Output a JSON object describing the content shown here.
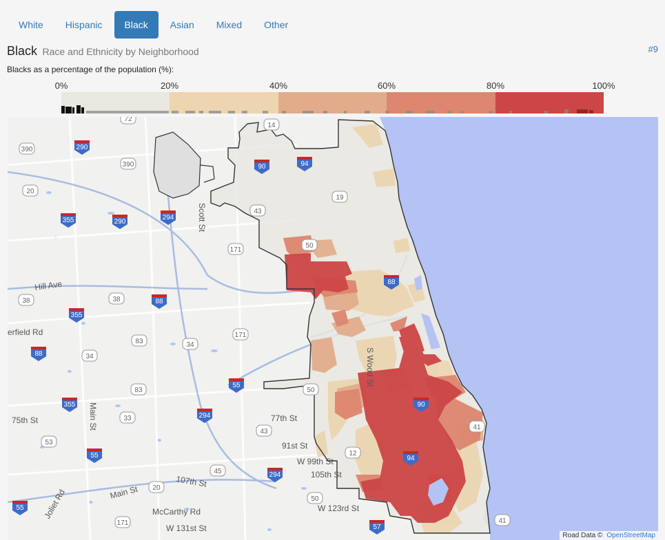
{
  "tabs": [
    {
      "label": "White",
      "active": false
    },
    {
      "label": "Hispanic",
      "active": false
    },
    {
      "label": "Black",
      "active": true
    },
    {
      "label": "Asian",
      "active": false
    },
    {
      "label": "Mixed",
      "active": false
    },
    {
      "label": "Other",
      "active": false
    }
  ],
  "header": {
    "title": "Black",
    "subtitle": "Race and Ethnicity by Neighborhood",
    "permalink": "#9"
  },
  "legend": {
    "caption": "Blacks as a percentage of the population (%):",
    "ticks": [
      "0%",
      "20%",
      "40%",
      "60%",
      "80%",
      "100%"
    ],
    "colors": [
      "#e9e8e0",
      "#ecd5b0",
      "#e2ac8a",
      "#dd8670",
      "#cc4646"
    ]
  },
  "map": {
    "water_color": "#b4c3f4",
    "road_labels": [
      "Hill Ave",
      "erfield Rd",
      "75th St",
      "Main St",
      "Scott St",
      "77th St",
      "91st St",
      "W 99th St",
      "105th St",
      "107th St",
      "Main St",
      "McCarthy Rd",
      "W 131st St",
      "W 123rd St",
      "S Wood St",
      "Joliet Rd"
    ],
    "highway_shields": [
      "290",
      "290",
      "294",
      "355",
      "88",
      "355",
      "88",
      "355",
      "55",
      "294",
      "294",
      "55",
      "55",
      "57",
      "94",
      "90",
      "94",
      "90",
      "88"
    ],
    "route_markers": [
      "390",
      "390",
      "20",
      "72",
      "14",
      "19",
      "43",
      "171",
      "38",
      "38",
      "83",
      "34",
      "34",
      "171",
      "83",
      "53",
      "33",
      "43",
      "45",
      "20",
      "50",
      "12",
      "41",
      "53",
      "171",
      "50",
      "41",
      "50"
    ]
  },
  "attribution": {
    "text": "Road Data ©",
    "link": "OpenStreetMap"
  }
}
